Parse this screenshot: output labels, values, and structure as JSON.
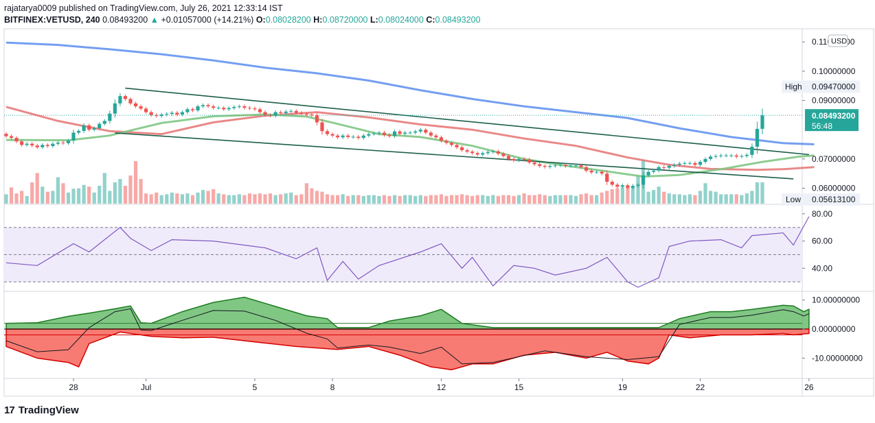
{
  "header": {
    "published": "rajatarya0009 published on TradingView.com, July 26, 2021 12:33:14 IST",
    "symbol": "BITFINEX:VETUSD, 240",
    "last": "0.08493200",
    "change_arrow": "▲",
    "change": "+0.01057000 (+14.21%)",
    "o_label": "O:",
    "o": "0.08028200",
    "h_label": "H:",
    "h": "0.08720000",
    "l_label": "L:",
    "l": "0.08024000",
    "c_label": "C:",
    "c": "0.08493200"
  },
  "price_scale": {
    "currency_badge": "USD",
    "ticks": [
      "0.11000000",
      "0.10000000",
      "0.09000000",
      "0.07000000",
      "0.06000000"
    ],
    "tick_values": [
      0.11,
      0.1,
      0.09,
      0.07,
      0.06
    ],
    "high_label": "High",
    "high_value": "0.09470000",
    "low_label": "Low",
    "low_value": "0.05613100",
    "current_price": "0.08493200",
    "countdown": "56:48"
  },
  "rsi_scale": {
    "ticks": [
      "80.00",
      "60.00",
      "40.00"
    ],
    "tick_values": [
      80,
      60,
      40
    ]
  },
  "osc_scale": {
    "ticks": [
      "10.00000000",
      "0.00000000",
      "-10.00000000"
    ],
    "tick_values": [
      10,
      0,
      -10
    ]
  },
  "time_axis": {
    "labels": [
      "28",
      "Jul",
      "5",
      "8",
      "12",
      "15",
      "19",
      "22",
      "26"
    ]
  },
  "brand": {
    "logo": "17",
    "name": "TradingView"
  },
  "colors": {
    "up": "#26a69a",
    "down": "#ef5350",
    "ma_fast": "#81c784",
    "ma_mid": "#e57373",
    "ma_slow": "#5b8def",
    "channel": "#1b5e4a",
    "rsi": "#7e57c2",
    "rsi_band": "#f0ebfa",
    "osc_up": "#4caf50",
    "osc_down": "#f44336"
  },
  "chart_data": {
    "type": "candlestick",
    "symbol": "BITFINEX:VETUSD",
    "timeframe": "240",
    "ylim": [
      0.0545,
      0.1145
    ],
    "x_labels": [
      "28",
      "Jul",
      "5",
      "8",
      "12",
      "15",
      "19",
      "22",
      "26"
    ],
    "x_label_bars": [
      13,
      27,
      48,
      63,
      84,
      99,
      119,
      134,
      155
    ],
    "closes": [
      0.0778,
      0.0772,
      0.076,
      0.0748,
      0.0752,
      0.0746,
      0.074,
      0.0748,
      0.0744,
      0.0752,
      0.0756,
      0.0754,
      0.0763,
      0.079,
      0.0796,
      0.0815,
      0.08,
      0.0805,
      0.082,
      0.083,
      0.0855,
      0.089,
      0.0915,
      0.0905,
      0.089,
      0.088,
      0.0872,
      0.086,
      0.085,
      0.0847,
      0.0852,
      0.0854,
      0.0858,
      0.0852,
      0.086,
      0.087,
      0.0866,
      0.088,
      0.0884,
      0.088,
      0.0875,
      0.0875,
      0.087,
      0.0874,
      0.0878,
      0.088,
      0.0875,
      0.0873,
      0.087,
      0.086,
      0.085,
      0.0848,
      0.086,
      0.0857,
      0.0862,
      0.0864,
      0.0858,
      0.0854,
      0.0852,
      0.0849,
      0.0825,
      0.0795,
      0.0785,
      0.078,
      0.0774,
      0.078,
      0.0775,
      0.0776,
      0.0772,
      0.078,
      0.0785,
      0.0787,
      0.079,
      0.0782,
      0.0778,
      0.0794,
      0.0786,
      0.079,
      0.079,
      0.0794,
      0.08,
      0.079,
      0.078,
      0.0774,
      0.0762,
      0.0755,
      0.0748,
      0.074,
      0.073,
      0.0725,
      0.072,
      0.0715,
      0.072,
      0.0724,
      0.0726,
      0.0718,
      0.071,
      0.07,
      0.0695,
      0.07,
      0.0698,
      0.0688,
      0.0682,
      0.0676,
      0.0673,
      0.0676,
      0.0678,
      0.068,
      0.0676,
      0.0678,
      0.0678,
      0.0672,
      0.066,
      0.0654,
      0.0656,
      0.065,
      0.0622,
      0.0612,
      0.0605,
      0.061,
      0.0602,
      0.0608,
      0.0612,
      0.0644,
      0.0656,
      0.066,
      0.0672,
      0.067,
      0.0676,
      0.068,
      0.0684,
      0.0686,
      0.0686,
      0.068,
      0.069,
      0.07,
      0.0708,
      0.071,
      0.0712,
      0.0712,
      0.0712,
      0.0708,
      0.071,
      0.0714,
      0.0742,
      0.0803,
      0.0849
    ],
    "volumes": [
      0.22,
      0.38,
      0.24,
      0.3,
      0.18,
      0.5,
      0.72,
      0.4,
      0.28,
      0.3,
      0.62,
      0.48,
      0.26,
      0.35,
      0.36,
      0.44,
      0.4,
      0.26,
      0.42,
      0.72,
      0.3,
      0.5,
      0.58,
      0.42,
      0.66,
      1.0,
      0.58,
      0.24,
      0.22,
      0.26,
      0.2,
      0.22,
      0.26,
      0.24,
      0.22,
      0.24,
      0.2,
      0.26,
      0.32,
      0.3,
      0.34,
      0.24,
      0.22,
      0.2,
      0.2,
      0.22,
      0.2,
      0.24,
      0.22,
      0.24,
      0.22,
      0.24,
      0.2,
      0.22,
      0.24,
      0.26,
      0.2,
      0.22,
      0.48,
      0.36,
      0.3,
      0.28,
      0.22,
      0.2,
      0.2,
      0.22,
      0.18,
      0.2,
      0.2,
      0.18,
      0.2,
      0.2,
      0.18,
      0.2,
      0.18,
      0.2,
      0.18,
      0.2,
      0.2,
      0.18,
      0.2,
      0.18,
      0.2,
      0.2,
      0.22,
      0.18,
      0.2,
      0.2,
      0.22,
      0.2,
      0.18,
      0.2,
      0.2,
      0.18,
      0.2,
      0.18,
      0.2,
      0.2,
      0.18,
      0.2,
      0.24,
      0.2,
      0.2,
      0.22,
      0.2,
      0.18,
      0.2,
      0.2,
      0.2,
      0.2,
      0.18,
      0.22,
      0.24,
      0.2,
      0.2,
      0.26,
      0.3,
      0.34,
      0.36,
      0.38,
      0.42,
      0.38,
      0.66,
      1.02,
      0.28,
      0.32,
      0.4,
      0.28,
      0.24,
      0.22,
      0.22,
      0.2,
      0.22,
      0.2,
      0.3,
      0.48,
      0.3,
      0.28,
      0.22,
      0.22,
      0.22,
      0.22,
      0.2,
      0.24,
      0.3,
      0.5,
      0.5
    ],
    "ma_fast": [
      [
        0,
        0.0765
      ],
      [
        12,
        0.0764
      ],
      [
        20,
        0.078
      ],
      [
        30,
        0.0823
      ],
      [
        40,
        0.0846
      ],
      [
        50,
        0.0852
      ],
      [
        58,
        0.0845
      ],
      [
        64,
        0.082
      ],
      [
        72,
        0.0785
      ],
      [
        80,
        0.0775
      ],
      [
        90,
        0.0745
      ],
      [
        100,
        0.07
      ],
      [
        108,
        0.0677
      ],
      [
        115,
        0.066
      ],
      [
        123,
        0.064
      ],
      [
        130,
        0.0645
      ],
      [
        138,
        0.0665
      ],
      [
        146,
        0.069
      ],
      [
        153,
        0.0708
      ],
      [
        156,
        0.0712
      ]
    ],
    "ma_mid": [
      [
        0,
        0.0878
      ],
      [
        10,
        0.083
      ],
      [
        20,
        0.0795
      ],
      [
        30,
        0.0785
      ],
      [
        40,
        0.0825
      ],
      [
        50,
        0.0848
      ],
      [
        60,
        0.086
      ],
      [
        70,
        0.0842
      ],
      [
        80,
        0.0818
      ],
      [
        90,
        0.08
      ],
      [
        100,
        0.077
      ],
      [
        110,
        0.0745
      ],
      [
        120,
        0.0705
      ],
      [
        128,
        0.068
      ],
      [
        136,
        0.0666
      ],
      [
        145,
        0.0663
      ],
      [
        150,
        0.0665
      ],
      [
        156,
        0.0672
      ]
    ],
    "ma_slow": [
      [
        0,
        0.1098
      ],
      [
        10,
        0.109
      ],
      [
        20,
        0.1075
      ],
      [
        30,
        0.1058
      ],
      [
        40,
        0.1037
      ],
      [
        50,
        0.1012
      ],
      [
        60,
        0.0993
      ],
      [
        70,
        0.0968
      ],
      [
        80,
        0.0935
      ],
      [
        90,
        0.0905
      ],
      [
        100,
        0.088
      ],
      [
        110,
        0.086
      ],
      [
        120,
        0.084
      ],
      [
        130,
        0.0805
      ],
      [
        140,
        0.0775
      ],
      [
        150,
        0.0754
      ],
      [
        156,
        0.075
      ]
    ],
    "channel_upper": [
      [
        23,
        0.0942
      ],
      [
        155,
        0.0715
      ]
    ],
    "channel_lower": [
      [
        21,
        0.0789
      ],
      [
        152,
        0.0632
      ]
    ],
    "rsi": {
      "ylim": [
        23,
        87
      ],
      "upper_band": 70,
      "lower_band": 30,
      "mid": 50,
      "values": [
        [
          0,
          44
        ],
        [
          6,
          42
        ],
        [
          13,
          58
        ],
        [
          16,
          52
        ],
        [
          22,
          70
        ],
        [
          24,
          62
        ],
        [
          28,
          53
        ],
        [
          32,
          61
        ],
        [
          40,
          60
        ],
        [
          50,
          55
        ],
        [
          56,
          47
        ],
        [
          60,
          55
        ],
        [
          62,
          31
        ],
        [
          65,
          45
        ],
        [
          68,
          32
        ],
        [
          72,
          42
        ],
        [
          80,
          52
        ],
        [
          84,
          58
        ],
        [
          88,
          40
        ],
        [
          90,
          48
        ],
        [
          94,
          27
        ],
        [
          98,
          42
        ],
        [
          102,
          40
        ],
        [
          106,
          35
        ],
        [
          112,
          40
        ],
        [
          116,
          48
        ],
        [
          120,
          30
        ],
        [
          122,
          26
        ],
        [
          126,
          33
        ],
        [
          128,
          56
        ],
        [
          132,
          60
        ],
        [
          138,
          61
        ],
        [
          142,
          55
        ],
        [
          144,
          64
        ],
        [
          150,
          66
        ],
        [
          152,
          57
        ],
        [
          155,
          78
        ]
      ]
    },
    "oscillator": {
      "ylim": [
        -17,
        13
      ],
      "up_level": 2,
      "down_level": -2,
      "positive": [
        [
          0,
          2
        ],
        [
          6,
          2.2
        ],
        [
          12,
          4.4
        ],
        [
          16,
          5.5
        ],
        [
          21,
          7.0
        ],
        [
          24,
          8.0
        ],
        [
          26,
          2.2
        ],
        [
          28,
          2.0
        ],
        [
          34,
          6.0
        ],
        [
          40,
          9.2
        ],
        [
          46,
          11.0
        ],
        [
          52,
          7.8
        ],
        [
          58,
          4.6
        ],
        [
          62,
          3.6
        ],
        [
          64,
          0.5
        ],
        [
          70,
          0.5
        ],
        [
          74,
          2.8
        ],
        [
          80,
          4.6
        ],
        [
          84,
          6.8
        ],
        [
          88,
          2.0
        ],
        [
          94,
          0.5
        ],
        [
          104,
          0.5
        ],
        [
          112,
          0.5
        ],
        [
          120,
          0.5
        ],
        [
          126,
          0.5
        ],
        [
          130,
          3.6
        ],
        [
          136,
          6.0
        ],
        [
          140,
          6.0
        ],
        [
          144,
          6.8
        ],
        [
          150,
          8.2
        ],
        [
          152,
          8.0
        ],
        [
          154,
          6.0
        ],
        [
          155,
          6.8
        ]
      ],
      "negative": [
        [
          0,
          -6
        ],
        [
          6,
          -10
        ],
        [
          12,
          -11.5
        ],
        [
          14,
          -13
        ],
        [
          16,
          -5
        ],
        [
          22,
          -1
        ],
        [
          28,
          -2.5
        ],
        [
          34,
          -3
        ],
        [
          40,
          -2.8
        ],
        [
          50,
          -4.8
        ],
        [
          56,
          -6
        ],
        [
          64,
          -7
        ],
        [
          70,
          -6
        ],
        [
          76,
          -9
        ],
        [
          82,
          -13
        ],
        [
          86,
          -14
        ],
        [
          90,
          -12
        ],
        [
          94,
          -12
        ],
        [
          100,
          -9
        ],
        [
          106,
          -8
        ],
        [
          112,
          -10
        ],
        [
          116,
          -8
        ],
        [
          120,
          -11
        ],
        [
          124,
          -12
        ],
        [
          126,
          -10
        ],
        [
          128,
          -2
        ],
        [
          132,
          -3
        ],
        [
          138,
          -2
        ],
        [
          144,
          -2
        ],
        [
          150,
          -1.5
        ],
        [
          152,
          -2
        ],
        [
          155,
          -1.5
        ]
      ]
    }
  }
}
